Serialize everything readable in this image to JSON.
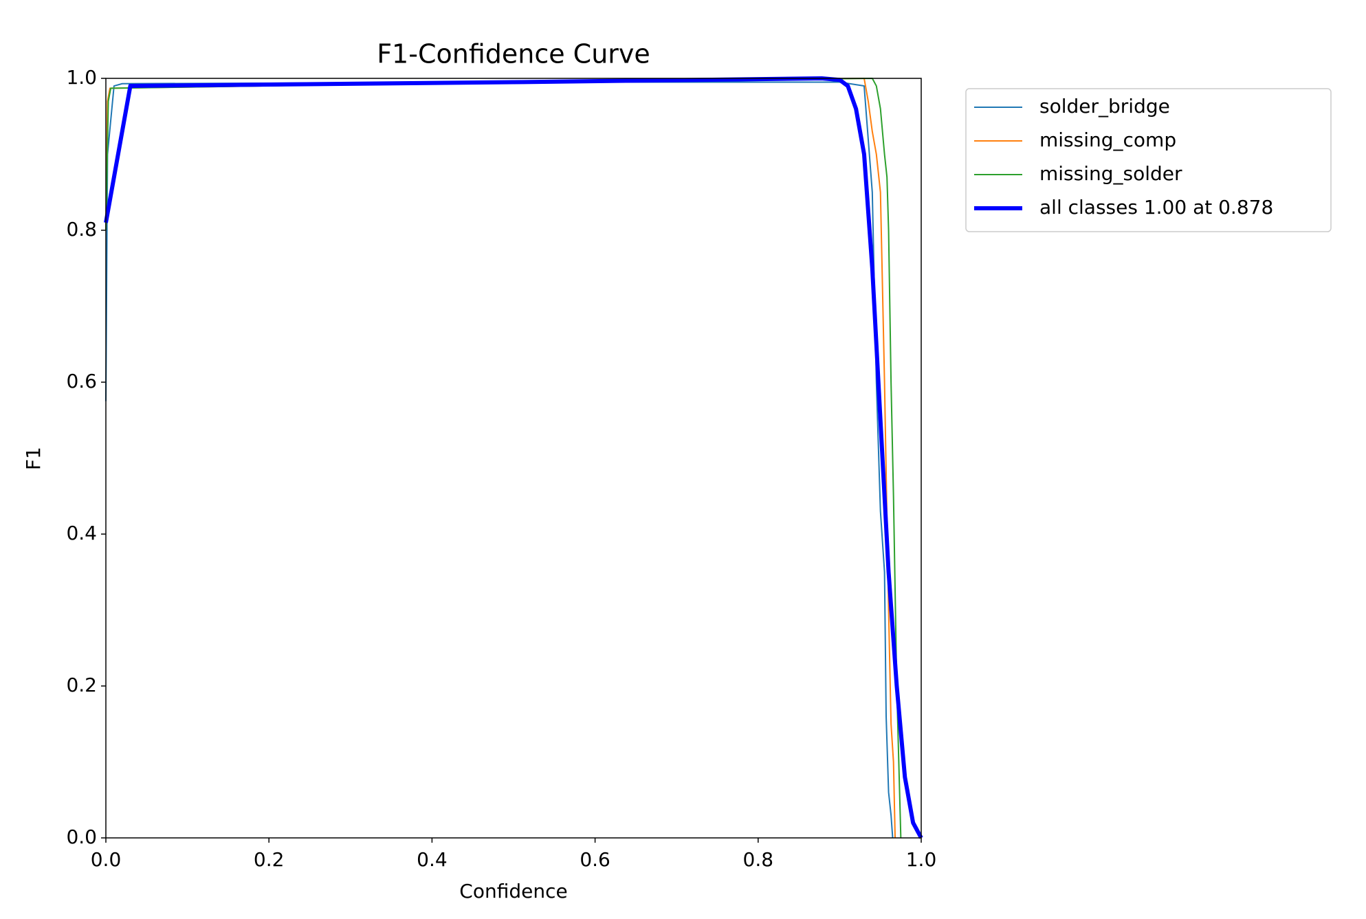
{
  "chart_data": {
    "type": "line",
    "title": "F1-Confidence Curve",
    "x_label": "Confidence",
    "y_label": "F1",
    "xlim": [
      0,
      1
    ],
    "ylim": [
      0,
      1
    ],
    "xticks": [
      {
        "value": 0,
        "label": "0.0"
      },
      0.2,
      0.4,
      0.6,
      0.8,
      {
        "value": 1,
        "label": "1.0"
      }
    ],
    "yticks": [
      {
        "value": 0,
        "label": "0.0"
      },
      0.2,
      0.4,
      0.6,
      0.8,
      {
        "value": 1,
        "label": "1.0"
      }
    ],
    "grid": false,
    "legend": "outside-upper-right",
    "series": [
      {
        "name": "solder_bridge",
        "color": "#1f77b4",
        "width": 2,
        "x": [
          0,
          0.002,
          0.01,
          0.02,
          0.5,
          0.9,
          0.93,
          0.94,
          0.945,
          0.95,
          0.955,
          0.957,
          0.96,
          0.963,
          0.965
        ],
        "values": [
          0.575,
          0.9,
          0.99,
          0.993,
          0.995,
          0.995,
          0.99,
          0.85,
          0.6,
          0.43,
          0.35,
          0.16,
          0.06,
          0.03,
          0
        ]
      },
      {
        "name": "missing_comp",
        "color": "#ff7f0e",
        "width": 2,
        "x": [
          0,
          0.002,
          0.005,
          0.5,
          0.93,
          0.935,
          0.94,
          0.945,
          0.95,
          0.955,
          0.96,
          0.963,
          0.966,
          0.968
        ],
        "values": [
          0.8,
          0.97,
          0.987,
          0.995,
          1.0,
          0.97,
          0.93,
          0.9,
          0.85,
          0.6,
          0.3,
          0.15,
          0.1,
          0
        ]
      },
      {
        "name": "missing_solder",
        "color": "#2ca02c",
        "width": 2,
        "x": [
          0,
          0.003,
          0.006,
          0.5,
          0.94,
          0.945,
          0.95,
          0.955,
          0.958,
          0.96,
          0.963,
          0.966,
          0.97,
          0.975
        ],
        "values": [
          0.8,
          0.97,
          0.987,
          0.995,
          1.0,
          0.99,
          0.96,
          0.9,
          0.87,
          0.8,
          0.6,
          0.45,
          0.2,
          0
        ]
      },
      {
        "name": "all classes 1.00 at 0.878",
        "color": "#0000ff",
        "width": 6,
        "x": [
          0,
          0.03,
          0.5,
          0.878,
          0.9,
          0.91,
          0.92,
          0.93,
          0.94,
          0.95,
          0.96,
          0.97,
          0.98,
          0.99,
          1.0
        ],
        "values": [
          0.81,
          0.99,
          0.995,
          1.0,
          0.998,
          0.99,
          0.96,
          0.9,
          0.75,
          0.55,
          0.35,
          0.2,
          0.08,
          0.02,
          0
        ]
      }
    ]
  }
}
